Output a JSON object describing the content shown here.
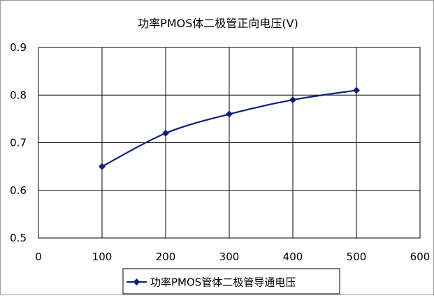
{
  "chart_data": {
    "type": "line",
    "title": "功率PMOS体二极管正向电压(V)",
    "xlabel": "",
    "ylabel": "",
    "x": [
      100,
      200,
      300,
      400,
      500
    ],
    "series": [
      {
        "name": "功率PMOS管体二极管导通电压",
        "values": [
          0.65,
          0.72,
          0.76,
          0.79,
          0.81
        ],
        "color": "#0f1f7a",
        "marker": "diamond"
      }
    ],
    "xlim": [
      0,
      600
    ],
    "ylim": [
      0.5,
      0.9
    ],
    "xticks": [
      "0",
      "100",
      "200",
      "300",
      "400",
      "500",
      "600"
    ],
    "yticks": [
      "0.5",
      "0.6",
      "0.7",
      "0.8",
      "0.9"
    ],
    "grid": true,
    "legend_position": "bottom-center",
    "smooth": true
  }
}
